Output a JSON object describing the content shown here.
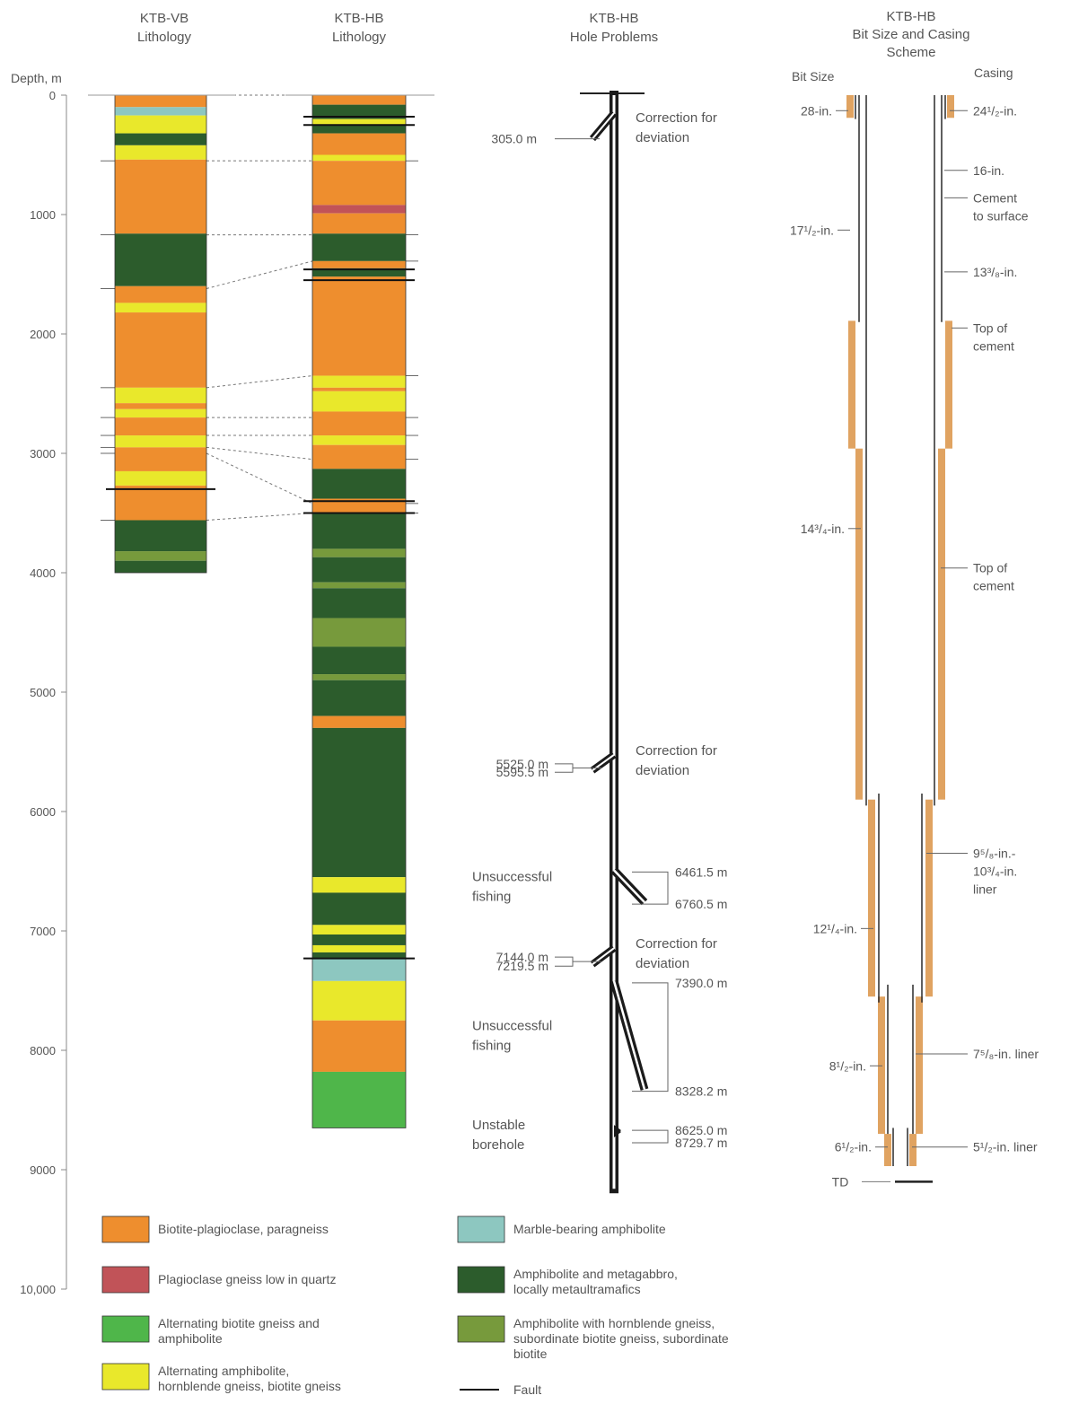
{
  "headers": {
    "vb_lith": [
      "KTB-VB",
      "Lithology"
    ],
    "hb_lith": [
      "KTB-HB",
      "Lithology"
    ],
    "hb_problems": [
      "KTB-HB",
      "Hole Problems"
    ],
    "hb_casing": [
      "KTB-HB",
      "Bit Size and Casing",
      "Scheme"
    ],
    "depth_axis": "Depth, m",
    "bit_size": "Bit Size",
    "casing": "Casing"
  },
  "colors": {
    "biotite_plagioclase": "#ee8e2e",
    "plagioclase_gneiss": "#c15358",
    "alt_biotite_amphibolite": "#4fb64a",
    "alt_amphibolite_hornblende": "#e9e82b",
    "marble_amphibolite": "#8dc7c0",
    "amphibolite_metagabbro": "#2c5c2c",
    "amphibolite_hornblende": "#779a3c",
    "fault": "#111111",
    "pipe": "#1b1b1b",
    "cement": "#e0a361"
  },
  "depth_ticks": [
    "0",
    "1000",
    "2000",
    "3000",
    "4000",
    "5000",
    "6000",
    "7000",
    "8000",
    "9000",
    "10,000"
  ],
  "legend": [
    {
      "key": "biotite_plagioclase",
      "label": [
        "Biotite-plagioclase, paragneiss"
      ]
    },
    {
      "key": "plagioclase_gneiss",
      "label": [
        "Plagioclase gneiss low in quartz"
      ]
    },
    {
      "key": "alt_biotite_amphibolite",
      "label": [
        "Alternating biotite gneiss and",
        "amphibolite"
      ]
    },
    {
      "key": "alt_amphibolite_hornblende",
      "label": [
        "Alternating amphibolite,",
        "hornblende gneiss, biotite gneiss"
      ]
    },
    {
      "key": "marble_amphibolite",
      "label": [
        "Marble-bearing amphibolite"
      ]
    },
    {
      "key": "amphibolite_metagabbro",
      "label": [
        "Amphibolite and metagabbro,",
        "locally metaultramafics"
      ]
    },
    {
      "key": "amphibolite_hornblende",
      "label": [
        "Amphibolite with hornblende gneiss,",
        "subordinate biotite gneiss, subordinate",
        "biotite"
      ]
    },
    {
      "key": "fault",
      "label": [
        "Fault"
      ]
    }
  ],
  "vb_column": {
    "bottom_depth": 4000,
    "layers": [
      [
        0,
        100,
        "biotite_plagioclase"
      ],
      [
        100,
        170,
        "marble_amphibolite"
      ],
      [
        170,
        320,
        "alt_amphibolite_hornblende"
      ],
      [
        320,
        420,
        "amphibolite_metagabbro"
      ],
      [
        420,
        540,
        "alt_amphibolite_hornblende"
      ],
      [
        540,
        1160,
        "biotite_plagioclase"
      ],
      [
        1160,
        1600,
        "amphibolite_metagabbro"
      ],
      [
        1600,
        1740,
        "biotite_plagioclase"
      ],
      [
        1740,
        1820,
        "alt_amphibolite_hornblende"
      ],
      [
        1820,
        2450,
        "biotite_plagioclase"
      ],
      [
        2450,
        2580,
        "alt_amphibolite_hornblende"
      ],
      [
        2580,
        2630,
        "biotite_plagioclase"
      ],
      [
        2630,
        2700,
        "alt_amphibolite_hornblende"
      ],
      [
        2700,
        2850,
        "biotite_plagioclase"
      ],
      [
        2850,
        2950,
        "alt_amphibolite_hornblende"
      ],
      [
        2950,
        3150,
        "biotite_plagioclase"
      ],
      [
        3150,
        3270,
        "alt_amphibolite_hornblende"
      ],
      [
        3270,
        3560,
        "biotite_plagioclase"
      ],
      [
        3560,
        3820,
        "amphibolite_metagabbro"
      ],
      [
        3820,
        3900,
        "amphibolite_hornblende"
      ],
      [
        3900,
        4000,
        "amphibolite_metagabbro"
      ]
    ],
    "faults": [
      3300
    ]
  },
  "hb_column": {
    "bottom_depth": 8650,
    "layers": [
      [
        0,
        80,
        "biotite_plagioclase"
      ],
      [
        80,
        200,
        "amphibolite_metagabbro"
      ],
      [
        200,
        250,
        "alt_amphibolite_hornblende"
      ],
      [
        250,
        320,
        "amphibolite_metagabbro"
      ],
      [
        320,
        500,
        "biotite_plagioclase"
      ],
      [
        500,
        550,
        "alt_amphibolite_hornblende"
      ],
      [
        550,
        920,
        "biotite_plagioclase"
      ],
      [
        920,
        990,
        "plagioclase_gneiss"
      ],
      [
        990,
        1160,
        "biotite_plagioclase"
      ],
      [
        1160,
        1390,
        "amphibolite_metagabbro"
      ],
      [
        1390,
        1450,
        "biotite_plagioclase"
      ],
      [
        1450,
        1520,
        "amphibolite_metagabbro"
      ],
      [
        1520,
        2350,
        "biotite_plagioclase"
      ],
      [
        2350,
        2450,
        "alt_amphibolite_hornblende"
      ],
      [
        2450,
        2480,
        "biotite_plagioclase"
      ],
      [
        2480,
        2650,
        "alt_amphibolite_hornblende"
      ],
      [
        2650,
        2850,
        "biotite_plagioclase"
      ],
      [
        2850,
        2930,
        "alt_amphibolite_hornblende"
      ],
      [
        2930,
        3130,
        "biotite_plagioclase"
      ],
      [
        3130,
        3380,
        "amphibolite_metagabbro"
      ],
      [
        3380,
        3500,
        "biotite_plagioclase"
      ],
      [
        3500,
        3800,
        "amphibolite_metagabbro"
      ],
      [
        3800,
        3870,
        "amphibolite_hornblende"
      ],
      [
        3870,
        4080,
        "amphibolite_metagabbro"
      ],
      [
        4080,
        4130,
        "amphibolite_hornblende"
      ],
      [
        4130,
        4380,
        "amphibolite_metagabbro"
      ],
      [
        4380,
        4620,
        "amphibolite_hornblende"
      ],
      [
        4620,
        4850,
        "amphibolite_metagabbro"
      ],
      [
        4850,
        4900,
        "amphibolite_hornblende"
      ],
      [
        4900,
        5200,
        "amphibolite_metagabbro"
      ],
      [
        5200,
        5300,
        "biotite_plagioclase"
      ],
      [
        5300,
        6550,
        "amphibolite_metagabbro"
      ],
      [
        6550,
        6680,
        "alt_amphibolite_hornblende"
      ],
      [
        6680,
        6950,
        "amphibolite_metagabbro"
      ],
      [
        6950,
        7030,
        "alt_amphibolite_hornblende"
      ],
      [
        7030,
        7120,
        "amphibolite_metagabbro"
      ],
      [
        7120,
        7180,
        "alt_amphibolite_hornblende"
      ],
      [
        7180,
        7230,
        "amphibolite_metagabbro"
      ],
      [
        7230,
        7420,
        "marble_amphibolite"
      ],
      [
        7420,
        7750,
        "alt_amphibolite_hornblende"
      ],
      [
        7750,
        8180,
        "biotite_plagioclase"
      ],
      [
        8180,
        8650,
        "alt_biotite_amphibolite"
      ]
    ],
    "faults": [
      180,
      250,
      1460,
      1550,
      3400,
      3500,
      7230
    ]
  },
  "correlations": [
    [
      0,
      0
    ],
    [
      550,
      550
    ],
    [
      1170,
      1170
    ],
    [
      1620,
      1390
    ],
    [
      2450,
      2350
    ],
    [
      2700,
      2700
    ],
    [
      2850,
      2850
    ],
    [
      2950,
      3050
    ],
    [
      3000,
      3420
    ],
    [
      3560,
      3500
    ]
  ],
  "problems": [
    {
      "kind": "deviation",
      "description": [
        "Correction for",
        "deviation"
      ],
      "depths": [
        "305.0 m"
      ],
      "start": 0,
      "end": 305
    },
    {
      "kind": "deviation",
      "description": [
        "Correction for",
        "deviation"
      ],
      "depths": [
        "5525.0 m",
        "5595.5 m"
      ],
      "start": 5525,
      "end": 5595.5
    },
    {
      "kind": "fishing",
      "description": [
        "Unsuccessful",
        "fishing"
      ],
      "depths": [
        "6461.5 m",
        "6760.5 m"
      ],
      "start": 6461.5,
      "end": 6760.5
    },
    {
      "kind": "deviation",
      "description": [
        "Correction for",
        "deviation"
      ],
      "depths": [
        "7144.0 m",
        "7219.5 m"
      ],
      "start": 7144,
      "end": 7219.5
    },
    {
      "kind": "fishing",
      "description": [
        "Unsuccessful",
        "fishing"
      ],
      "depths": [
        "7390.0 m",
        "8328.2 m"
      ],
      "start": 7390,
      "end": 8328.2
    },
    {
      "kind": "unstable",
      "description": [
        "Unstable",
        "borehole"
      ],
      "depths": [
        "8625.0 m",
        "8729.7 m"
      ],
      "start": 8625,
      "end": 8729.7
    }
  ],
  "bit_sizes": [
    {
      "label": "28-in.",
      "depth": 100
    },
    {
      "label": "17¹/₂-in.",
      "depth": 1100
    },
    {
      "label": "14³/₄-in.",
      "depth": 3600
    },
    {
      "label": "12¹/₄-in.",
      "depth": 6950
    },
    {
      "label": "8¹/₂-in.",
      "depth": 8100
    },
    {
      "label": "6¹/₂-in.",
      "depth": 8780
    }
  ],
  "casings": [
    {
      "label": [
        "24¹/₂-in."
      ],
      "depth": 100
    },
    {
      "label": [
        "16-in."
      ],
      "depth": 600
    },
    {
      "label": [
        "Cement",
        "to surface"
      ],
      "depth": 830
    },
    {
      "label": [
        "13³/₈-in."
      ],
      "depth": 1450
    },
    {
      "label": [
        "Top of",
        "cement"
      ],
      "depth": 1920
    },
    {
      "label": [
        "Top of",
        "cement"
      ],
      "depth": 3930
    },
    {
      "label": [
        "9⁵/₈-in.-",
        "10³/₄-in.",
        "liner"
      ],
      "depth": 6320
    },
    {
      "label": [
        "7⁵/₈-in. liner"
      ],
      "depth": 8000
    },
    {
      "label": [
        "5¹/₂-in. liner"
      ],
      "depth": 8780
    }
  ],
  "td_label": "TD",
  "td_depth": 9101
}
